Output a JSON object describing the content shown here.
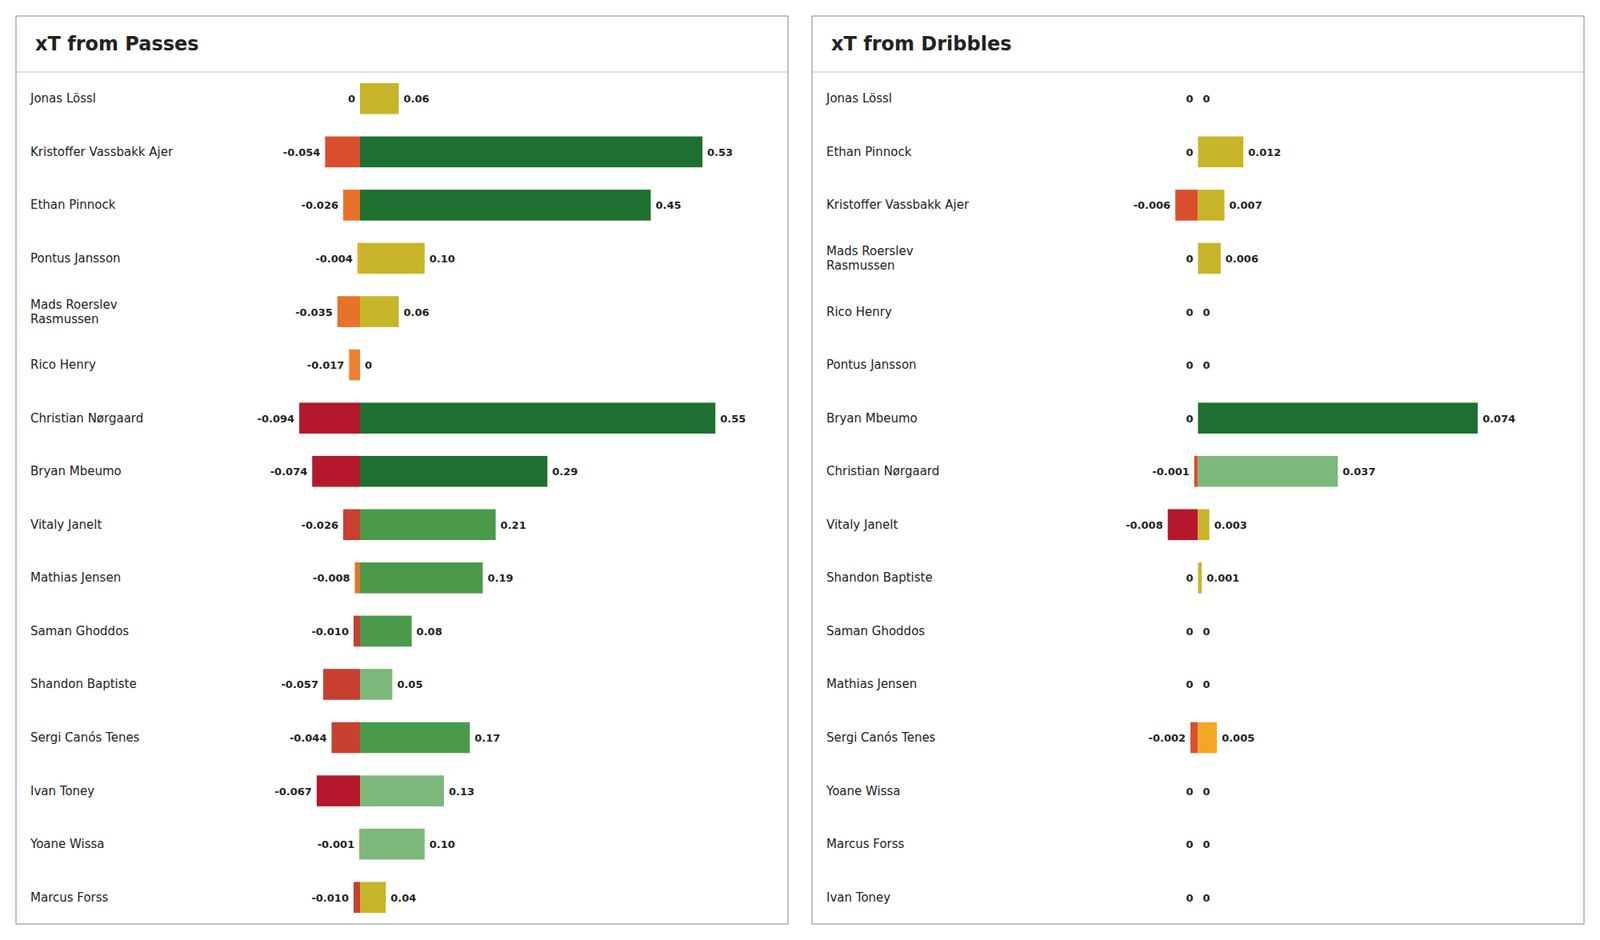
{
  "chart_data": [
    {
      "type": "bar",
      "orientation": "horizontal",
      "stacked": true,
      "data_labels": true,
      "grid": false,
      "tick_labels": false,
      "title": "xT from Passes",
      "categories": [
        "Jonas Lössl",
        "Kristoffer Vassbakk Ajer",
        "Ethan Pinnock",
        "Pontus Jansson",
        "Mads Roerslev\nRasmussen",
        "Rico Henry",
        "Christian Nørgaard",
        "Bryan Mbeumo",
        "Vitaly Janelt",
        "Mathias Jensen",
        "Saman Ghoddos",
        "Shandon Baptiste",
        "Sergi Canós Tenes",
        "Ivan Toney",
        "Yoane Wissa",
        "Marcus Forss"
      ],
      "xlim": [
        -0.52,
        0.65
      ],
      "series": [
        {
          "values": [
            0.0,
            -0.054,
            -0.026,
            -0.004,
            -0.035,
            -0.017,
            -0.094,
            -0.074,
            -0.026,
            -0.008,
            -0.01,
            -0.057,
            -0.044,
            -0.067,
            -0.001,
            -0.01
          ],
          "value_labels": [
            "0",
            "-0.054",
            "-0.026",
            "-0.004",
            "-0.035",
            "-0.017",
            "-0.094",
            "-0.074",
            "-0.026",
            "-0.008",
            "-0.010",
            "-0.057",
            "-0.044",
            "-0.067",
            "-0.001",
            "-0.010"
          ],
          "colors": [
            "#F5A623",
            "#D94F2D",
            "#E8722A",
            "#F5A623",
            "#E8722A",
            "#F08030",
            "#B5182C",
            "#B5182C",
            "#C84030",
            "#E8722A",
            "#C84030",
            "#C84030",
            "#C84030",
            "#B5182C",
            "#E8722A",
            "#C84030"
          ]
        },
        {
          "values": [
            0.06,
            0.53,
            0.45,
            0.1,
            0.06,
            0.0,
            0.55,
            0.29,
            0.21,
            0.19,
            0.08,
            0.05,
            0.17,
            0.13,
            0.1,
            0.04
          ],
          "value_labels": [
            "0.06",
            "0.53",
            "0.45",
            "0.10",
            "0.06",
            "0",
            "0.55",
            "0.29",
            "0.21",
            "0.19",
            "0.08",
            "0.05",
            "0.17",
            "0.13",
            "0.10",
            "0.04"
          ],
          "colors": [
            "#C8B428",
            "#1E7030",
            "#1E7030",
            "#C8B428",
            "#C8B428",
            "#C8B428",
            "#1E7030",
            "#1E7030",
            "#4A9A4A",
            "#4A9A4A",
            "#4A9A4A",
            "#7CB87A",
            "#4A9A4A",
            "#7CB87A",
            "#7CB87A",
            "#C8B428"
          ]
        }
      ]
    },
    {
      "type": "bar",
      "orientation": "horizontal",
      "stacked": true,
      "data_labels": true,
      "grid": false,
      "tick_labels": false,
      "title": "xT from Dribbles",
      "categories": [
        "Jonas Lössl",
        "Ethan Pinnock",
        "Kristoffer Vassbakk Ajer",
        "Mads Roerslev\nRasmussen",
        "Rico Henry",
        "Pontus Jansson",
        "Bryan Mbeumo",
        "Christian Nørgaard",
        "Vitaly Janelt",
        "Shandon Baptiste",
        "Saman Ghoddos",
        "Mathias Jensen",
        "Sergi Canós Tenes",
        "Yoane Wissa",
        "Marcus Forss",
        "Ivan Toney"
      ],
      "xlim": [
        -0.1,
        0.1
      ],
      "series": [
        {
          "values": [
            0.0,
            0.0,
            -0.006,
            0.0,
            0.0,
            0.0,
            0.0,
            -0.001,
            -0.008,
            0.0,
            0.0,
            0.0,
            -0.002,
            0.0,
            0.0,
            0.0
          ],
          "value_labels": [
            "0",
            "0",
            "-0.006",
            "0",
            "0",
            "0",
            "0",
            "-0.001",
            "-0.008",
            "0",
            "0",
            "0",
            "-0.002",
            "0",
            "0",
            "0"
          ],
          "colors": [
            "#F5A623",
            "#F5A623",
            "#D94F2D",
            "#F5A623",
            "#F5A623",
            "#F5A623",
            "#F5A623",
            "#D94F2D",
            "#B5182C",
            "#F5A623",
            "#F5A623",
            "#F5A623",
            "#D94F2D",
            "#F5A623",
            "#F5A623",
            "#F5A623"
          ]
        },
        {
          "values": [
            0.0,
            0.012,
            0.007,
            0.006,
            0.0,
            0.0,
            0.074,
            0.037,
            0.003,
            0.001,
            0.0,
            0.0,
            0.005,
            0.0,
            0.0,
            0.0
          ],
          "value_labels": [
            "0",
            "0.012",
            "0.007",
            "0.006",
            "0",
            "0",
            "0.074",
            "0.037",
            "0.003",
            "0.001",
            "0",
            "0",
            "0.005",
            "0",
            "0",
            "0"
          ],
          "colors": [
            "#C8B428",
            "#C8B428",
            "#C8B428",
            "#C8B428",
            "#C8B428",
            "#C8B428",
            "#1E7030",
            "#7CB87A",
            "#C8B428",
            "#C8B428",
            "#C8B428",
            "#C8B428",
            "#F5A623",
            "#C8B428",
            "#C8B428",
            "#C8B428"
          ]
        }
      ]
    }
  ]
}
